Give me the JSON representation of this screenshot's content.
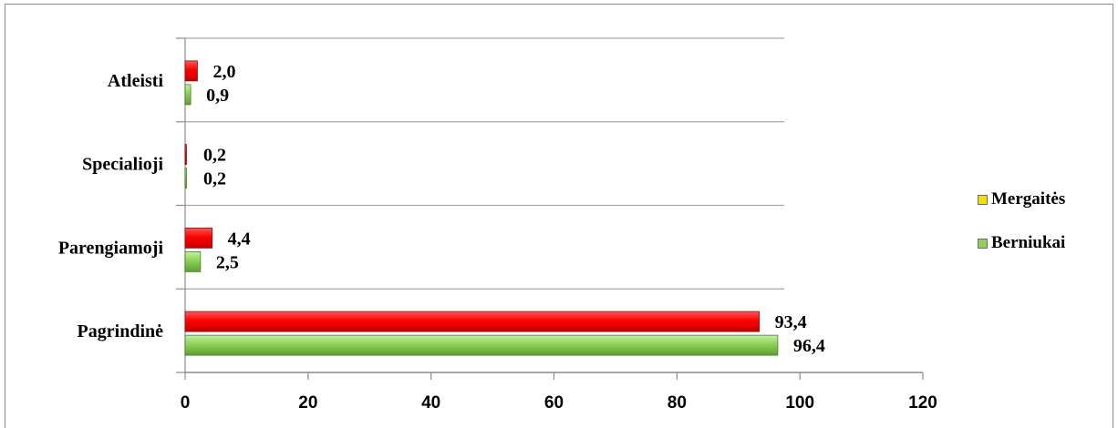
{
  "chart_data": {
    "type": "bar",
    "orientation": "horizontal",
    "categories": [
      "Atleisti",
      "Specialioji",
      "Parengiamoji",
      "Pagrindinė"
    ],
    "series": [
      {
        "name": "Mergaitės",
        "values": [
          2.0,
          0.2,
          4.4,
          93.4
        ],
        "labels": [
          "2,0",
          "0,2",
          "4,4",
          "93,4"
        ],
        "bar_color": "#ff0000",
        "legend_color": "#f2df00"
      },
      {
        "name": "Berniukai",
        "values": [
          0.9,
          0.2,
          2.5,
          96.4
        ],
        "labels": [
          "0,9",
          "0,2",
          "2,5",
          "96,4"
        ],
        "bar_color": "#8fd05a",
        "legend_color": "#8fd05a"
      }
    ],
    "x_ticks": [
      "0",
      "20",
      "40",
      "60",
      "80",
      "100",
      "120"
    ],
    "xlim": [
      0,
      120
    ],
    "grid": true,
    "legend_position": "right",
    "title": "",
    "xlabel": "",
    "ylabel": ""
  },
  "legend": {
    "items": [
      {
        "label": "Mergaitės",
        "color": "#f2df00"
      },
      {
        "label": "Berniukai",
        "color": "#8fd05a"
      }
    ]
  }
}
